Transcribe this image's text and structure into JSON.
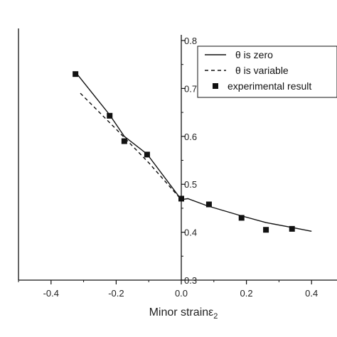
{
  "chart_data": {
    "type": "line",
    "title": "",
    "xlabel": "Minor strain",
    "xlabel_symbol": "ε",
    "xlabel_subscript": "2",
    "ylabel": "",
    "xlim": [
      -0.5,
      0.5
    ],
    "ylim": [
      0.3,
      0.8
    ],
    "x_ticks": [
      -0.4,
      -0.2,
      0.0,
      0.2,
      0.4
    ],
    "x_tick_labels": [
      "-0.4",
      "-0.2",
      "0.0",
      "0.2",
      "0.4"
    ],
    "y_ticks": [
      0.3,
      0.4,
      0.5,
      0.6,
      0.7,
      0.8
    ],
    "y_tick_labels": [
      "0.3",
      "0.4",
      "0.5",
      "0.6",
      "0.7",
      "0.8"
    ],
    "y_axis_at_x": 0.0,
    "grid": false,
    "legend_position": "top-right",
    "series": [
      {
        "name": "θ is zero",
        "symbol": "θ",
        "label_rest": " is zero",
        "style": "solid-line",
        "x": [
          -0.32,
          -0.22,
          -0.175,
          -0.105,
          0.0,
          0.02,
          0.08,
          0.18,
          0.26,
          0.34,
          0.4
        ],
        "y": [
          0.73,
          0.645,
          0.6,
          0.563,
          0.468,
          0.47,
          0.455,
          0.435,
          0.42,
          0.41,
          0.402
        ]
      },
      {
        "name": "θ is variable",
        "symbol": "θ",
        "label_rest": " is variable",
        "style": "dashed-line",
        "x": [
          -0.31,
          -0.2,
          -0.1,
          0.0
        ],
        "y": [
          0.69,
          0.615,
          0.545,
          0.468
        ]
      },
      {
        "name": "experimental result",
        "symbol": "",
        "label_rest": "experimental result",
        "style": "square-markers",
        "x": [
          -0.325,
          -0.22,
          -0.175,
          -0.105,
          0.0,
          0.085,
          0.185,
          0.26,
          0.34
        ],
        "y": [
          0.73,
          0.643,
          0.59,
          0.562,
          0.47,
          0.458,
          0.43,
          0.405,
          0.407
        ]
      }
    ]
  }
}
